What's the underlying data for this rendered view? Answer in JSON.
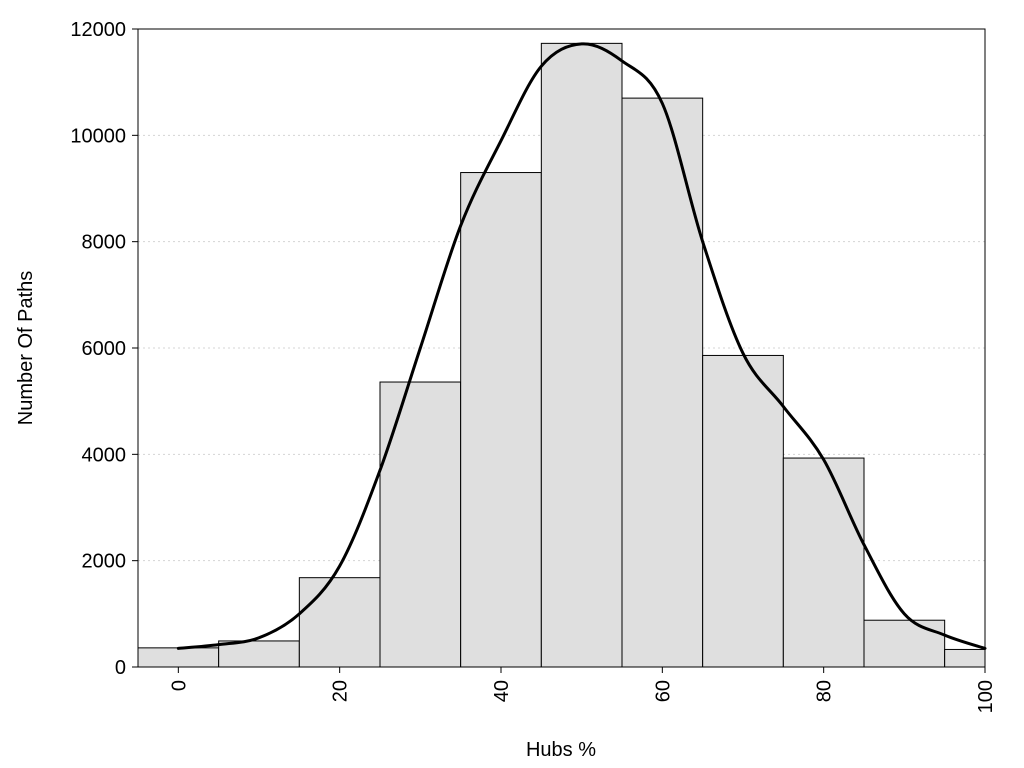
{
  "chart_data": {
    "type": "bar",
    "xlabel": "Hubs %",
    "ylabel": "Number Of Paths",
    "xlim": [
      -5,
      100
    ],
    "ylim": [
      0,
      12000
    ],
    "x_ticks": [
      "0",
      "20",
      "40",
      "60",
      "80",
      "100"
    ],
    "y_ticks": [
      "0",
      "2000",
      "4000",
      "6000",
      "8000",
      "10000",
      "12000"
    ],
    "grid": "horizontal dotted",
    "bar_color": "#dfdfdf",
    "line_color": "#000000",
    "bins": [
      {
        "start": -5,
        "end": 5,
        "value": 360
      },
      {
        "start": 5,
        "end": 15,
        "value": 490
      },
      {
        "start": 15,
        "end": 25,
        "value": 1680
      },
      {
        "start": 25,
        "end": 35,
        "value": 5360
      },
      {
        "start": 35,
        "end": 45,
        "value": 9300
      },
      {
        "start": 45,
        "end": 55,
        "value": 11730
      },
      {
        "start": 55,
        "end": 65,
        "value": 10700
      },
      {
        "start": 65,
        "end": 75,
        "value": 5860
      },
      {
        "start": 75,
        "end": 85,
        "value": 3930
      },
      {
        "start": 85,
        "end": 95,
        "value": 880
      },
      {
        "start": 95,
        "end": 100,
        "value": 330
      }
    ],
    "density_curve": {
      "x": [
        0,
        5,
        10,
        15,
        20,
        25,
        30,
        35,
        40,
        45,
        50,
        55,
        60,
        65,
        70,
        75,
        80,
        85,
        90,
        95,
        100
      ],
      "y": [
        350,
        420,
        550,
        1000,
        1900,
        3700,
        6000,
        8300,
        9900,
        11300,
        11720,
        11400,
        10600,
        8000,
        5900,
        4900,
        3900,
        2300,
        1000,
        600,
        350
      ]
    }
  }
}
